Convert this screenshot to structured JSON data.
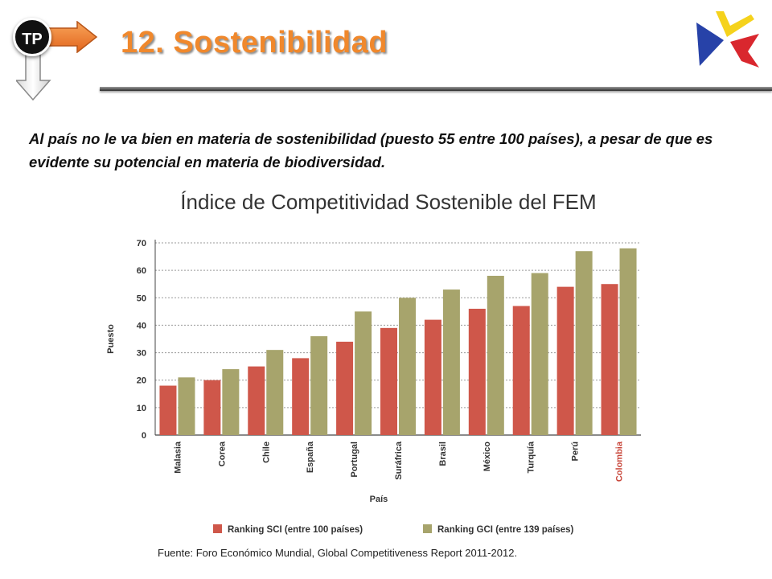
{
  "header": {
    "badge": "TP",
    "title": "12. Sostenibilidad"
  },
  "intro": "Al país no le va bien en materia de sostenibilidad (puesto 55 entre 100 países), a pesar de que es evidente su potencial en materia de biodiversidad.",
  "chart_heading": "Índice de Competitividad Sostenible del FEM",
  "colors": {
    "title": "#f0882c",
    "sci": "#cf574a",
    "gci": "#a7a46c",
    "highlight_label": "#c8463a"
  },
  "chart_data": {
    "type": "bar",
    "title": "",
    "xlabel": "País",
    "ylabel": "Puesto",
    "ylim": [
      0,
      70
    ],
    "yticks": [
      0,
      10,
      20,
      30,
      40,
      50,
      60,
      70
    ],
    "grid": true,
    "legend_position": "bottom",
    "categories": [
      "Malasia",
      "Corea",
      "Chile",
      "España",
      "Portugal",
      "Suráfrica",
      "Brasil",
      "México",
      "Turquía",
      "Perú",
      "Colombia"
    ],
    "highlight_category": "Colombia",
    "series": [
      {
        "name": "Ranking SCI (entre 100 países)",
        "values": [
          18,
          20,
          25,
          28,
          34,
          39,
          42,
          46,
          47,
          54,
          55
        ]
      },
      {
        "name": "Ranking GCI (entre 139 países)",
        "values": [
          21,
          24,
          31,
          36,
          45,
          50,
          53,
          58,
          59,
          67,
          68
        ]
      }
    ],
    "source": "Fuente: Foro Económico Mundial, Global Competitiveness Report 2011-2012."
  }
}
